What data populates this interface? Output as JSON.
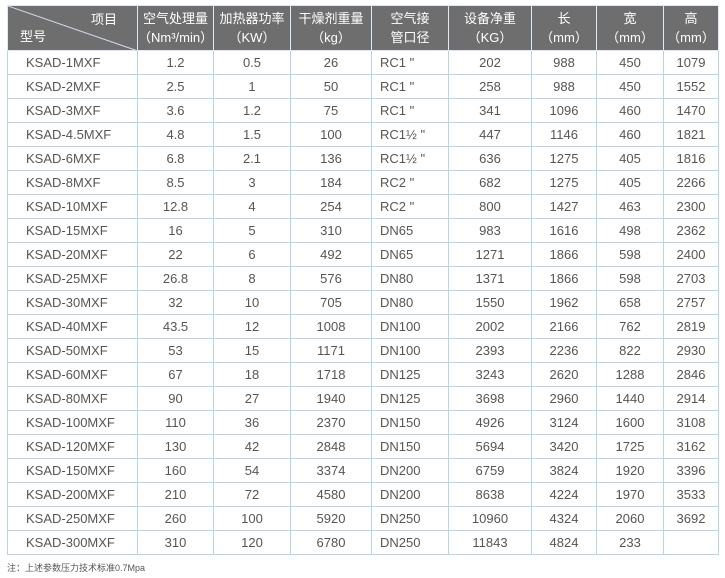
{
  "header": {
    "corner_top": "项目",
    "corner_bottom": "型号",
    "columns": [
      [
        "空气处理量",
        "（Nm³/min）"
      ],
      [
        "加热器功率",
        "（KW）"
      ],
      [
        "干燥剂重量",
        "（kg）"
      ],
      [
        "空气接",
        "管口径"
      ],
      [
        "设备净重",
        "（KG）"
      ],
      [
        "长",
        "（mm）"
      ],
      [
        "宽",
        "（mm）"
      ],
      [
        "高",
        "（mm）"
      ]
    ]
  },
  "rows": [
    [
      "KSAD-1MXF",
      "1.2",
      "0.5",
      "26",
      "RC1 \"",
      "202",
      "988",
      "450",
      "1079"
    ],
    [
      "KSAD-2MXF",
      "2.5",
      "1",
      "50",
      "RC1 \"",
      "258",
      "988",
      "450",
      "1552"
    ],
    [
      "KSAD-3MXF",
      "3.6",
      "1.2",
      "75",
      "RC1 \"",
      "341",
      "1096",
      "460",
      "1470"
    ],
    [
      "KSAD-4.5MXF",
      "4.8",
      "1.5",
      "100",
      "RC1½ \"",
      "447",
      "1146",
      "460",
      "1821"
    ],
    [
      "KSAD-6MXF",
      "6.8",
      "2.1",
      "136",
      "RC1½ \"",
      "636",
      "1275",
      "405",
      "1816"
    ],
    [
      "KSAD-8MXF",
      "8.5",
      "3",
      "184",
      "RC2 \"",
      "682",
      "1275",
      "405",
      "2266"
    ],
    [
      "KSAD-10MXF",
      "12.8",
      "4",
      "254",
      "RC2 \"",
      "800",
      "1427",
      "463",
      "2300"
    ],
    [
      "KSAD-15MXF",
      "16",
      "5",
      "310",
      "DN65",
      "983",
      "1616",
      "498",
      "2362"
    ],
    [
      "KSAD-20MXF",
      "22",
      "6",
      "492",
      "DN65",
      "1271",
      "1866",
      "598",
      "2400"
    ],
    [
      "KSAD-25MXF",
      "26.8",
      "8",
      "576",
      "DN80",
      "1371",
      "1866",
      "598",
      "2703"
    ],
    [
      "KSAD-30MXF",
      "32",
      "10",
      "705",
      "DN80",
      "1550",
      "1962",
      "658",
      "2757"
    ],
    [
      "KSAD-40MXF",
      "43.5",
      "12",
      "1008",
      "DN100",
      "2002",
      "2166",
      "762",
      "2819"
    ],
    [
      "KSAD-50MXF",
      "53",
      "15",
      "1171",
      "DN100",
      "2393",
      "2236",
      "822",
      "2930"
    ],
    [
      "KSAD-60MXF",
      "67",
      "18",
      "1718",
      "DN125",
      "3243",
      "2620",
      "1288",
      "2846"
    ],
    [
      "KSAD-80MXF",
      "90",
      "27",
      "1940",
      "DN125",
      "3698",
      "2960",
      "1440",
      "2914"
    ],
    [
      "KSAD-100MXF",
      "110",
      "36",
      "2370",
      "DN150",
      "4926",
      "3124",
      "1600",
      "3108"
    ],
    [
      "KSAD-120MXF",
      "130",
      "42",
      "2848",
      "DN150",
      "5694",
      "3420",
      "1725",
      "3162"
    ],
    [
      "KSAD-150MXF",
      "160",
      "54",
      "3374",
      "DN200",
      "6759",
      "3824",
      "1920",
      "3396"
    ],
    [
      "KSAD-200MXF",
      "210",
      "72",
      "4580",
      "DN200",
      "8638",
      "4224",
      "1970",
      "3533"
    ],
    [
      "KSAD-250MXF",
      "260",
      "100",
      "5920",
      "DN250",
      "10960",
      "4324",
      "2060",
      "3692"
    ],
    [
      "KSAD-300MXF",
      "310",
      "120",
      "6780",
      "DN250",
      "11843",
      "4824",
      "233",
      ""
    ]
  ],
  "note": "注：上述参数压力技术标准0.7Mpa",
  "colors": {
    "header_bg": "#6e6e6e",
    "border": "#b9d3ea"
  }
}
